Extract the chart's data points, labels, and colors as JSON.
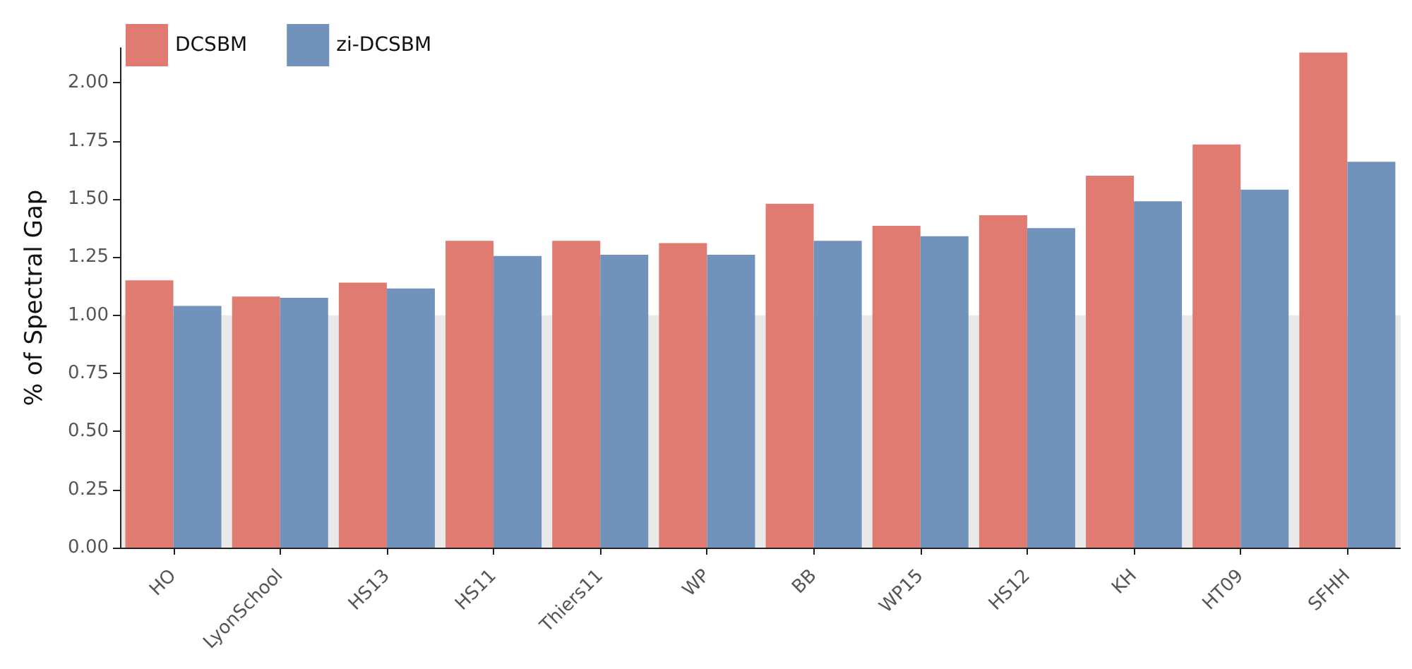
{
  "chart_data": {
    "type": "bar",
    "ylabel": "% of Spectral Gap",
    "categories": [
      "HO",
      "LyonSchool",
      "HS13",
      "HS11",
      "Thiers11",
      "WP",
      "BB",
      "WP15",
      "HS12",
      "KH",
      "HT09",
      "SFHH"
    ],
    "series": [
      {
        "name": "DCSBM",
        "color": "#e07b72",
        "values": [
          1.15,
          1.08,
          1.14,
          1.32,
          1.32,
          1.31,
          1.48,
          1.385,
          1.43,
          1.6,
          1.735,
          2.13
        ]
      },
      {
        "name": "zi-DCSBM",
        "color": "#7092bb",
        "values": [
          1.04,
          1.075,
          1.115,
          1.255,
          1.26,
          1.26,
          1.32,
          1.34,
          1.375,
          1.49,
          1.54,
          1.66
        ]
      }
    ],
    "ylim": [
      0,
      2.15
    ],
    "yticks": [
      {
        "value": 0,
        "label": "0.00"
      },
      {
        "value": 0.25,
        "label": "0.25"
      },
      {
        "value": 0.5,
        "label": "0.50"
      },
      {
        "value": 0.75,
        "label": "0.75"
      },
      {
        "value": 1,
        "label": "1.00"
      },
      {
        "value": 1.25,
        "label": "1.25"
      },
      {
        "value": 1.5,
        "label": "1.50"
      },
      {
        "value": 1.75,
        "label": "1.75"
      },
      {
        "value": 2,
        "label": "2.00"
      }
    ],
    "bands": [
      {
        "axis": "y",
        "from": 0,
        "to": 1,
        "color": "#4a4a4a"
      }
    ],
    "grid": false,
    "legend": "top left"
  }
}
